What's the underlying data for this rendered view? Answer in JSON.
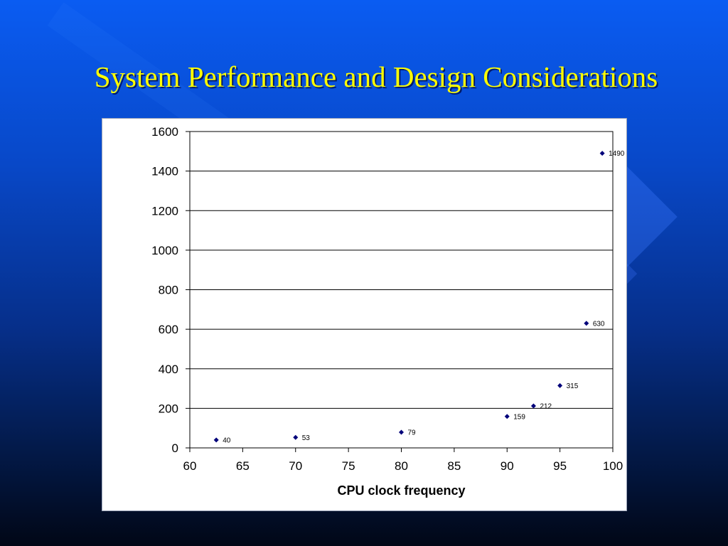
{
  "slide": {
    "title": "System Performance and Design Considerations"
  },
  "chart_data": {
    "type": "scatter",
    "title": "",
    "xlabel": "CPU clock frequency",
    "ylabel": "",
    "xlim": [
      60,
      100
    ],
    "ylim": [
      0,
      1600
    ],
    "xticks": [
      60,
      65,
      70,
      75,
      80,
      85,
      90,
      95,
      100
    ],
    "yticks": [
      0,
      200,
      400,
      600,
      800,
      1000,
      1200,
      1400,
      1600
    ],
    "grid": "horizontal",
    "legend": "none",
    "marker": "diamond",
    "marker_color": "#00007a",
    "series": [
      {
        "x": [
          62.5,
          70,
          80,
          90,
          92.5,
          95,
          97.5,
          99
        ],
        "y": [
          40,
          53,
          79,
          159,
          212,
          315,
          630,
          1490
        ],
        "labels": [
          "40",
          "53",
          "79",
          "159",
          "212",
          "315",
          "630",
          "1490"
        ]
      }
    ]
  }
}
